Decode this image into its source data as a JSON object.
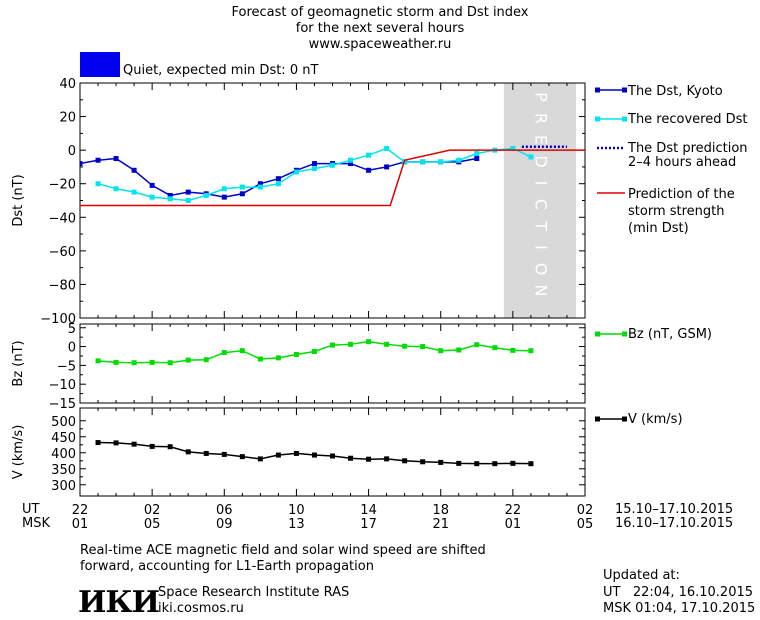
{
  "header": {
    "title_lines": [
      "Forecast of geomagnetic storm and Dst index",
      "for the next several hours",
      "www.spaceweather.ru"
    ],
    "status_label": "Quiet, expected min Dst: 0 nT",
    "status_color": "#0000ee"
  },
  "legend": {
    "kyoto": "The Dst, Kyoto",
    "recovered": "The recovered Dst",
    "prediction_line1": "The Dst prediction",
    "prediction_line2": "2–4 hours ahead",
    "strength_line1": "Prediction of the",
    "strength_line2": "storm strength",
    "strength_line3": "(min Dst)",
    "bz": "Bz (nT, GSM)",
    "v": "V (km/s)"
  },
  "prediction_label": "PREDICTION",
  "time_axis": {
    "ut_label": "UT",
    "msk_label": "MSK",
    "ut_ticks": [
      "22",
      "02",
      "06",
      "10",
      "14",
      "18",
      "22",
      "02"
    ],
    "msk_ticks": [
      "01",
      "05",
      "09",
      "13",
      "17",
      "21",
      "01",
      "05"
    ],
    "ut_range": "15.10–17.10.2015",
    "msk_range": "16.10–17.10.2015"
  },
  "footer": {
    "note_line1": "Real-time ACE magnetic field and solar wind speed are shifted",
    "note_line2": "forward, accounting for L1-Earth propagation",
    "logo": "ИКИ",
    "institute": "Space Research Institute RAS",
    "site": "iki.cosmos.ru",
    "updated_label": "Updated at:",
    "updated_ut": "UT   22:04, 16.10.2015",
    "updated_msk": "MSK 01:04, 17.10.2015"
  },
  "chart_data": [
    {
      "type": "line",
      "ylabel": "Dst (nT)",
      "xlim": [
        0,
        28
      ],
      "ylim": [
        -100,
        40
      ],
      "yticks": [
        40,
        20,
        0,
        -20,
        -40,
        -60,
        -80,
        -100
      ],
      "prediction_region": [
        23.5,
        27.5
      ],
      "series": [
        {
          "name": "The Dst, Kyoto",
          "color": "#0000cc",
          "marker": "square",
          "x": [
            0,
            1,
            2,
            3,
            4,
            5,
            6,
            7,
            8,
            9,
            10,
            11,
            12,
            13,
            14,
            15,
            16,
            17,
            18,
            19,
            20,
            21,
            22
          ],
          "y": [
            -8,
            -6,
            -5,
            -12,
            -21,
            -27,
            -25,
            -26,
            -28,
            -26,
            -20,
            -17,
            -12,
            -8,
            -8,
            -8,
            -12,
            -10,
            -7,
            -7,
            -7,
            -7,
            -5
          ]
        },
        {
          "name": "The recovered Dst",
          "color": "#00e5ee",
          "marker": "square",
          "x": [
            1,
            2,
            3,
            4,
            5,
            6,
            7,
            8,
            9,
            10,
            11,
            12,
            13,
            14,
            15,
            16,
            17,
            18,
            19,
            20,
            21,
            22,
            23,
            24,
            25
          ],
          "y": [
            -20,
            -23,
            -25,
            -28,
            -29,
            -30,
            -27,
            -23,
            -22,
            -22,
            -20,
            -13,
            -11,
            -9,
            -6,
            -3,
            1,
            -7,
            -7,
            -7,
            -6,
            -2,
            0,
            1,
            -4
          ]
        },
        {
          "name": "The Dst prediction 2–4 hours ahead",
          "color": "#0000cc",
          "style": "dotted",
          "x": [
            24.5,
            27
          ],
          "y": [
            2,
            2
          ]
        },
        {
          "name": "Prediction of the storm strength (min Dst)",
          "color": "#e00000",
          "style": "step",
          "x": [
            0,
            17.2,
            18,
            20.5,
            23.5,
            28
          ],
          "y": [
            -33,
            -33,
            -6,
            0,
            0,
            0
          ]
        }
      ]
    },
    {
      "type": "line",
      "ylabel": "Bz (nT)",
      "xlim": [
        0,
        28
      ],
      "ylim": [
        -15,
        6
      ],
      "yticks": [
        5,
        0,
        -5,
        -10,
        -15
      ],
      "series": [
        {
          "name": "Bz (nT, GSM)",
          "color": "#00dd00",
          "marker": "square",
          "x": [
            1,
            2,
            3,
            4,
            5,
            6,
            7,
            8,
            9,
            10,
            11,
            12,
            13,
            14,
            15,
            16,
            17,
            18,
            19,
            20,
            21,
            22,
            23,
            24,
            25
          ],
          "y": [
            -3.8,
            -4.2,
            -4.3,
            -4.2,
            -4.3,
            -3.6,
            -3.5,
            -1.6,
            -1.1,
            -3.3,
            -3,
            -2.1,
            -1.3,
            0.4,
            0.6,
            1.3,
            0.6,
            0.1,
            0,
            -1.1,
            -0.9,
            0.5,
            -0.3,
            -1,
            -1.1
          ]
        }
      ]
    },
    {
      "type": "line",
      "ylabel": "V (km/s)",
      "xlim": [
        0,
        28
      ],
      "ylim": [
        265,
        540
      ],
      "yticks": [
        500,
        450,
        400,
        350,
        300
      ],
      "series": [
        {
          "name": "V (km/s)",
          "color": "#000000",
          "marker": "square",
          "x": [
            1,
            2,
            3,
            4,
            5,
            6,
            7,
            8,
            9,
            10,
            11,
            12,
            13,
            14,
            15,
            16,
            17,
            18,
            19,
            20,
            21,
            22,
            23,
            24,
            25
          ],
          "y": [
            432,
            431,
            427,
            420,
            419,
            403,
            398,
            395,
            388,
            381,
            393,
            398,
            393,
            390,
            383,
            380,
            381,
            375,
            372,
            370,
            367,
            366,
            366,
            367,
            366
          ]
        }
      ]
    }
  ]
}
